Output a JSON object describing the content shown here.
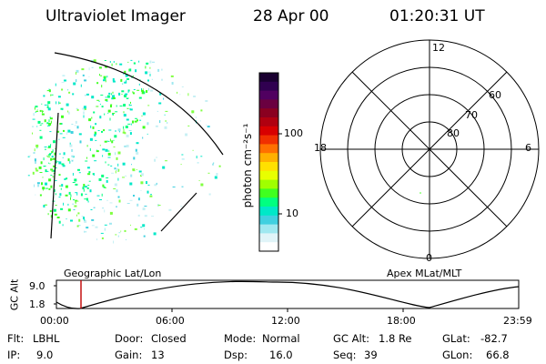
{
  "header": {
    "instrument": "Ultraviolet Imager",
    "date": "28 Apr 00",
    "time": "01:20:31 UT"
  },
  "colorbar": {
    "unit_label": "photon cm⁻²s⁻¹",
    "ticks": [
      "100",
      "10"
    ],
    "colors": [
      "#1a0030",
      "#300050",
      "#500060",
      "#6a0040",
      "#8a0020",
      "#b00010",
      "#d80000",
      "#f03000",
      "#ff7000",
      "#ffb000",
      "#ffe000",
      "#e8ff00",
      "#a0ff00",
      "#40ff20",
      "#00ff80",
      "#00e8c8",
      "#40d0e0",
      "#a0e8f0",
      "#e0f4f8",
      "#ffffff"
    ]
  },
  "polar_plot": {
    "labels": {
      "top": "12",
      "bottom": "0",
      "left": "18",
      "right": "6",
      "ring_60": "60",
      "ring_70": "70",
      "ring_80": "80"
    }
  },
  "timeline": {
    "left_label": "Geographic Lat/Lon",
    "right_label": "Apex MLat/MLT",
    "axis_label": "GC Alt",
    "y_ticks": [
      "9.0",
      "1.8"
    ],
    "x_ticks": [
      "00:00",
      "06:00",
      "12:00",
      "18:00",
      "23:59"
    ],
    "marker_color": "#c00000"
  },
  "footer": {
    "flt_label": "Flt:",
    "flt_value": "LBHL",
    "ip_label": "IP:",
    "ip_value": "9.0",
    "door_label": "Door:",
    "door_value": "Closed",
    "gain_label": "Gain:",
    "gain_value": "13",
    "mode_label": "Mode:",
    "mode_value": "Normal",
    "dsp_label": "Dsp:",
    "dsp_value": "16.0",
    "gcalt_label": "GC Alt:",
    "gcalt_value": "1.8 Re",
    "seq_label": "Seq:",
    "seq_value": "39",
    "glat_label": "GLat:",
    "glat_value": "-82.7",
    "glon_label": "GLon:",
    "glon_value": "66.8"
  }
}
